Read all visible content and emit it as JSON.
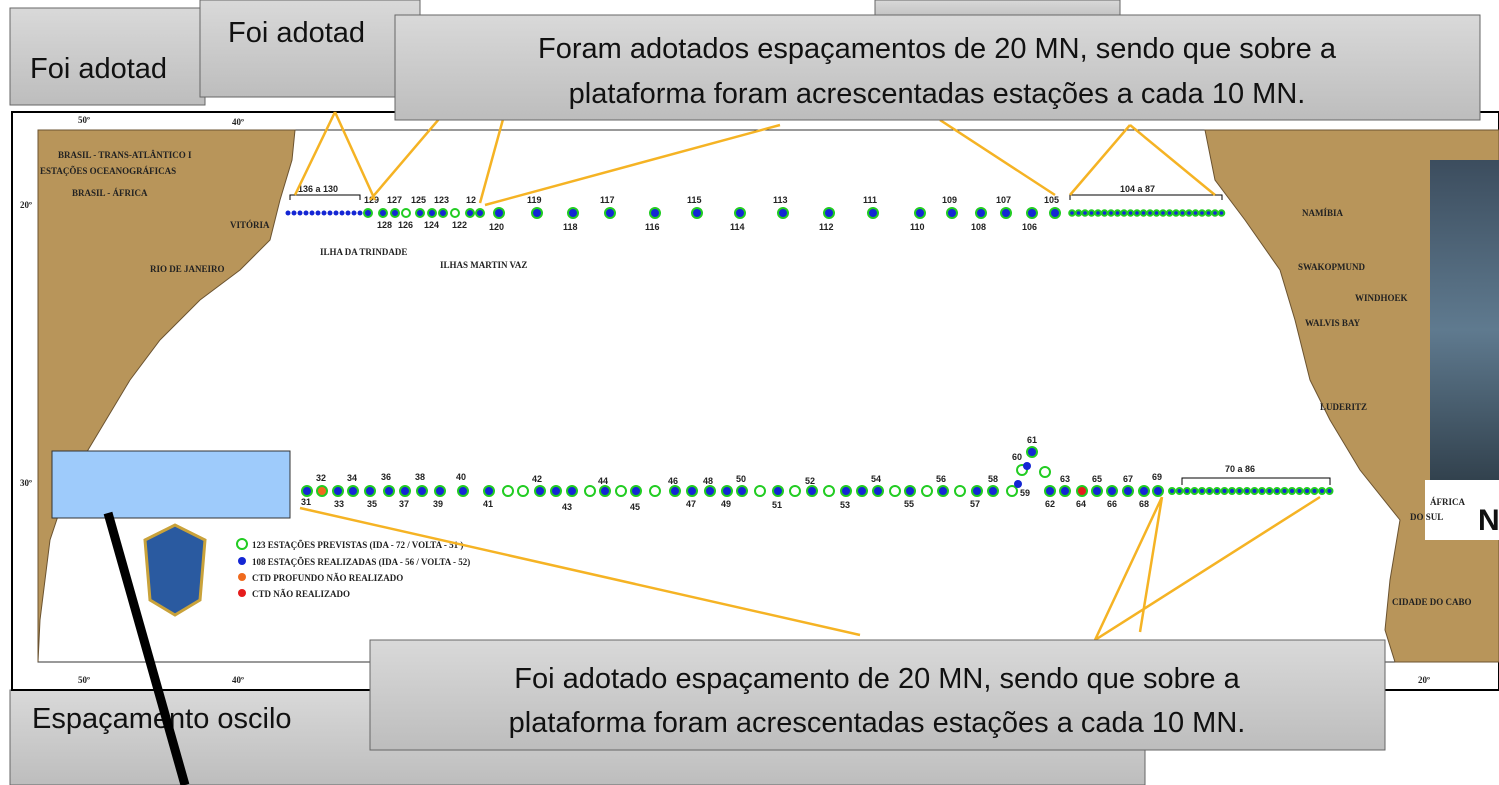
{
  "callouts": {
    "top_left": "Foi adotad",
    "top_middle": "Foi adotad",
    "top_main": [
      "Foram adotados espaçamentos de 20 MN, sendo que sobre a",
      "plataforma foram acrescentadas estações a cada 10 MN."
    ],
    "bottom_left": "Espaçamento oscilo",
    "bottom_main": [
      "Foi adotado espaçamento de 20 MN, sendo que sobre a",
      "plataforma foram acrescentadas estações a cada 10 MN."
    ]
  },
  "map": {
    "title": [
      "BRASIL - TRANS-ATLÂNTICO I",
      "ESTAÇÕES OCEANOGRÁFICAS",
      "BRASIL - ÁFRICA"
    ],
    "places": [
      "VITÓRIA",
      "RIO DE JANEIRO",
      "ILHA DA TRINDADE",
      "ILHAS MARTIN VAZ",
      "NAMÍBIA",
      "SWAKOPMUND",
      "WINDHOEK",
      "WALVIS BAY",
      "LUDERITZ",
      "ÁFRICA",
      "DO SUL",
      "CIDADE DO CABO"
    ],
    "top_longitudes": [
      "50º",
      "40º"
    ],
    "bottom_longitudes": [
      "50º",
      "40º",
      "20º"
    ],
    "latitudes": [
      "20º",
      "30º"
    ],
    "legend": [
      "123 ESTAÇÕES PREVISTAS (IDA - 72 / VOLTA - 51 )",
      "108 ESTAÇÕES REALIZADAS (IDA - 56 / VOLTA - 52)",
      "CTD PROFUNDO NÃO REALIZADO",
      "CTD NÃO REALIZADO"
    ],
    "top_stations": [
      "136 a 130",
      "129",
      "127",
      "125",
      "123",
      "12",
      "128",
      "126",
      "124",
      "122",
      "120",
      "119",
      "118",
      "117",
      "116",
      "115",
      "114",
      "113",
      "112",
      "111",
      "110",
      "109",
      "108",
      "107",
      "106",
      "105",
      "104 a 87"
    ],
    "bottom_stations": [
      "31",
      "32",
      "33",
      "34",
      "35",
      "36",
      "37",
      "38",
      "39",
      "40",
      "41",
      "42",
      "43",
      "44",
      "45",
      "46",
      "47",
      "48",
      "49",
      "50",
      "51",
      "52",
      "53",
      "54",
      "55",
      "56",
      "57",
      "58",
      "59",
      "60",
      "61",
      "62",
      "63",
      "64",
      "65",
      "66",
      "67",
      "68",
      "69",
      "70 a 86"
    ]
  },
  "photo_caption": "N"
}
